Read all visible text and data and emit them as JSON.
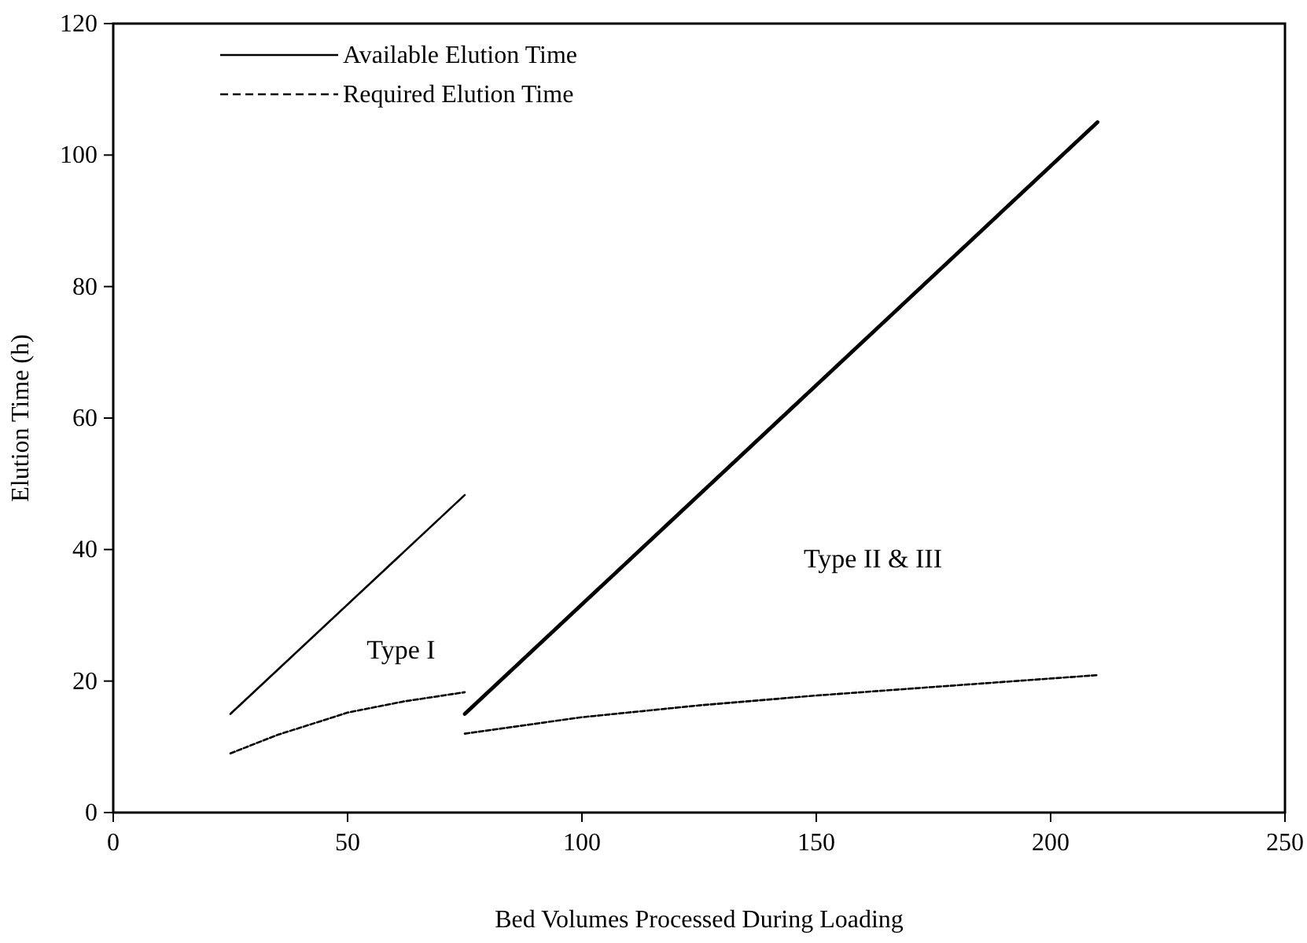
{
  "chart_data": {
    "type": "line",
    "xlabel": "Bed Volumes Processed During Loading",
    "ylabel": "Elution Time (h)",
    "xlim": [
      0,
      250
    ],
    "xticks": [
      0,
      50,
      100,
      150,
      200,
      250
    ],
    "ylim": [
      0,
      120
    ],
    "yticks": [
      0,
      20,
      40,
      60,
      80,
      100,
      120
    ],
    "grid": false,
    "legend": "top left",
    "marker": "none",
    "series": [
      {
        "name": "Available Elution Time",
        "color": "#000000",
        "line_style": "solid",
        "x": [
          25,
          75
        ],
        "values": [
          15,
          48.3
        ]
      },
      {
        "name": "Required Elution Time",
        "color": "#000000",
        "line_style": "dashed",
        "x": [
          25,
          35,
          50,
          62,
          75
        ],
        "values": [
          9,
          11.8,
          15.2,
          16.9,
          18.3
        ]
      },
      {
        "color": "#000000",
        "line_style": "solid",
        "x": [
          75,
          210
        ],
        "values": [
          15,
          105
        ]
      },
      {
        "color": "#000000",
        "line_style": "dashed",
        "x": [
          75,
          100,
          125,
          150,
          175,
          210
        ],
        "values": [
          12,
          14.5,
          16.3,
          17.8,
          19.1,
          20.9
        ]
      }
    ],
    "annotations": [
      "Type I",
      "Type II & III"
    ]
  }
}
